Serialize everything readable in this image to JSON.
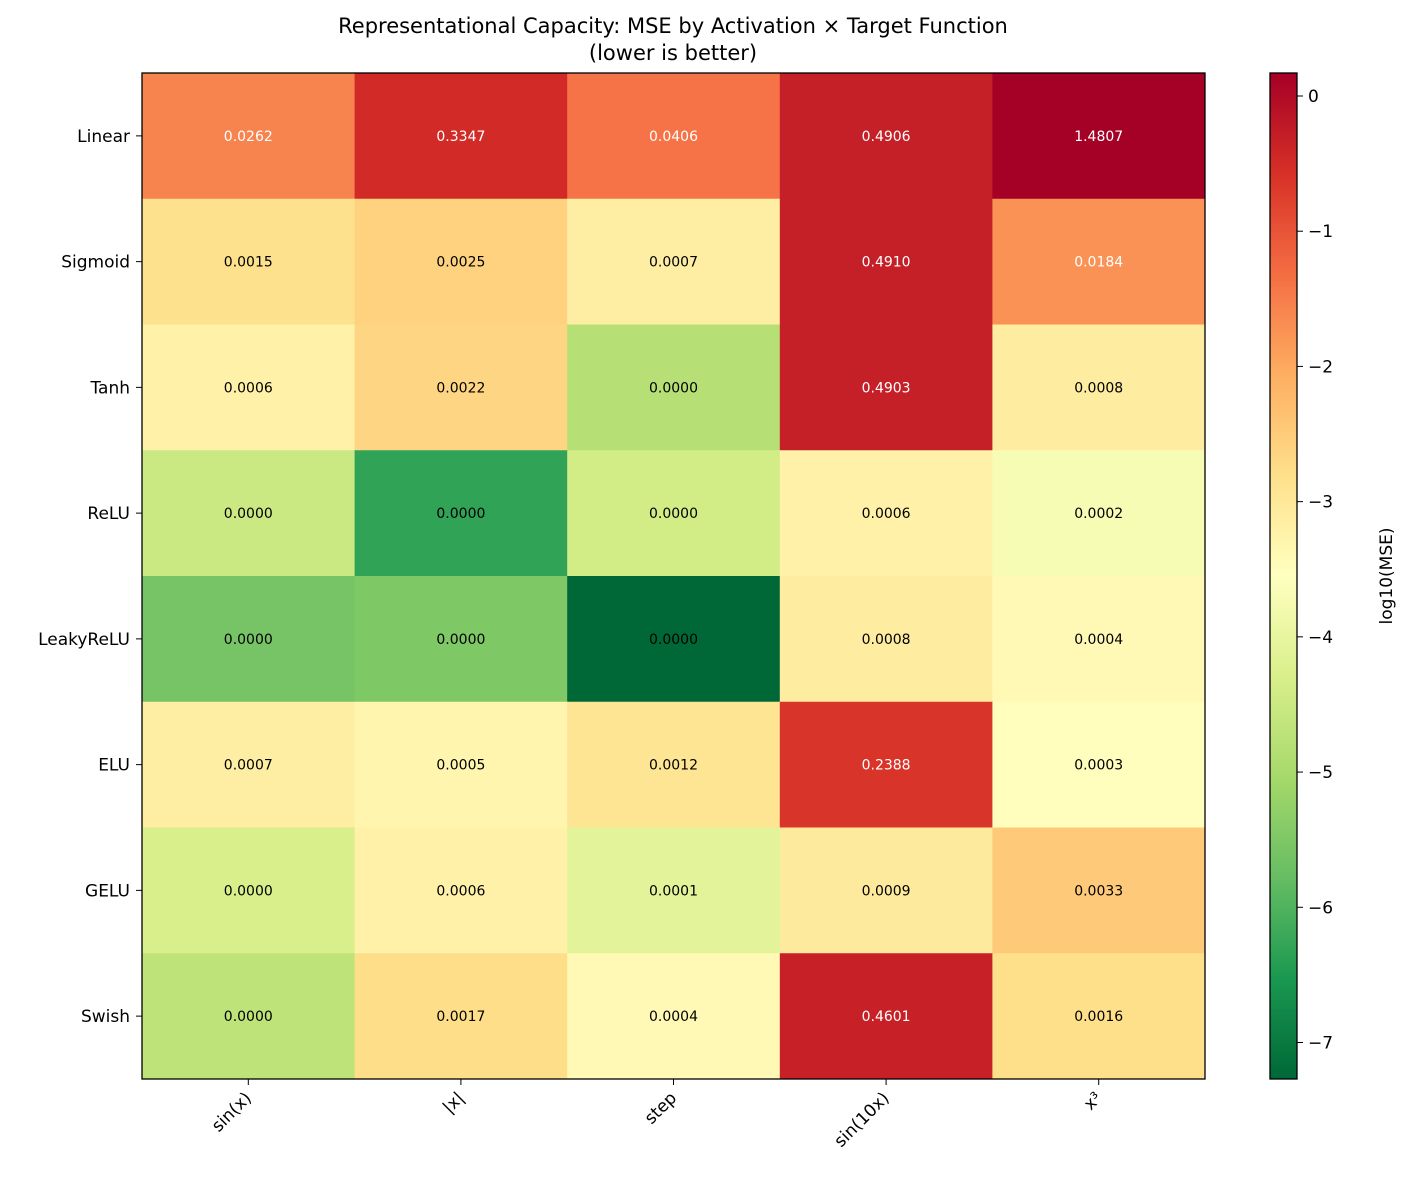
{
  "chart_data": {
    "type": "heatmap",
    "title": "Representational Capacity: MSE by Activation × Target Function",
    "subtitle": "(lower is better)",
    "rows": [
      "Linear",
      "Sigmoid",
      "Tanh",
      "ReLU",
      "LeakyReLU",
      "ELU",
      "GELU",
      "Swish"
    ],
    "columns": [
      "sin(x)",
      "|x|",
      "step",
      "sin(10x)",
      "x³"
    ],
    "values": [
      [
        "0.0262",
        "0.3347",
        "0.0406",
        "0.4906",
        "1.4807"
      ],
      [
        "0.0015",
        "0.0025",
        "0.0007",
        "0.4910",
        "0.0184"
      ],
      [
        "0.0006",
        "0.0022",
        "0.0000",
        "0.4903",
        "0.0008"
      ],
      [
        "0.0000",
        "0.0000",
        "0.0000",
        "0.0006",
        "0.0002"
      ],
      [
        "0.0000",
        "0.0000",
        "0.0000",
        "0.0008",
        "0.0004"
      ],
      [
        "0.0007",
        "0.0005",
        "0.0012",
        "0.2388",
        "0.0003"
      ],
      [
        "0.0000",
        "0.0006",
        "0.0001",
        "0.0009",
        "0.0033"
      ],
      [
        "0.0000",
        "0.0017",
        "0.0004",
        "0.4601",
        "0.0016"
      ]
    ],
    "log10_values": [
      [
        -1.58,
        -0.48,
        -1.39,
        -0.31,
        0.17
      ],
      [
        -2.82,
        -2.6,
        -3.15,
        -0.31,
        -1.74
      ],
      [
        -3.22,
        -2.66,
        -4.8,
        -0.31,
        -3.1
      ],
      [
        -4.5,
        -6.3,
        -4.4,
        -3.22,
        -3.7
      ],
      [
        -5.6,
        -5.5,
        -7.27,
        -3.1,
        -3.4
      ],
      [
        -3.15,
        -3.3,
        -2.92,
        -0.62,
        -3.52
      ],
      [
        -4.3,
        -3.22,
        -4.1,
        -3.05,
        -2.48
      ],
      [
        -4.7,
        -2.77,
        -3.4,
        -0.34,
        -2.8
      ]
    ],
    "colormap": "RdYlGn_r",
    "colorbar": {
      "label": "log10(MSE)",
      "range": [
        -7.27,
        0.17
      ],
      "ticks": [
        "0",
        "−1",
        "−2",
        "−3",
        "−4",
        "−5",
        "−6",
        "−7"
      ],
      "tick_values": [
        0,
        -1,
        -2,
        -3,
        -4,
        -5,
        -6,
        -7
      ]
    }
  }
}
